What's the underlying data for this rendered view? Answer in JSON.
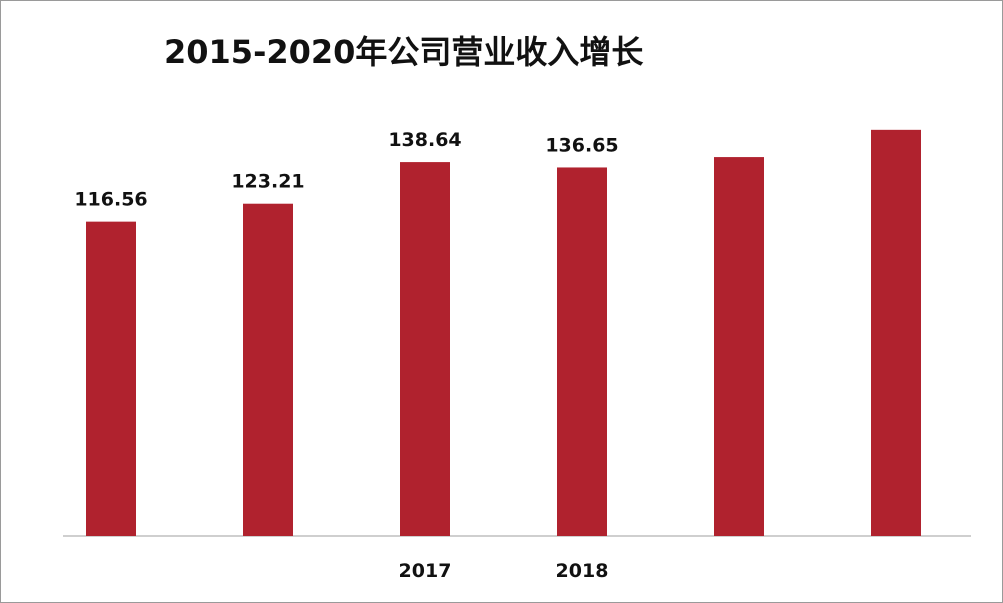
{
  "chart_data": {
    "type": "bar",
    "title": "2015-2020年公司营业收入增长",
    "categories": [
      "",
      "",
      "2017",
      "2018",
      "",
      ""
    ],
    "values": [
      116.56,
      123.21,
      138.64,
      136.65,
      140.5,
      150.6
    ],
    "data_labels": [
      "116.56",
      "123.21",
      "138.64",
      "136.65",
      "",
      ""
    ],
    "xlabel": "",
    "ylabel": "",
    "ylim": [
      0,
      165
    ],
    "grid": false,
    "legend": "none",
    "bar_color": "#b0222e"
  }
}
